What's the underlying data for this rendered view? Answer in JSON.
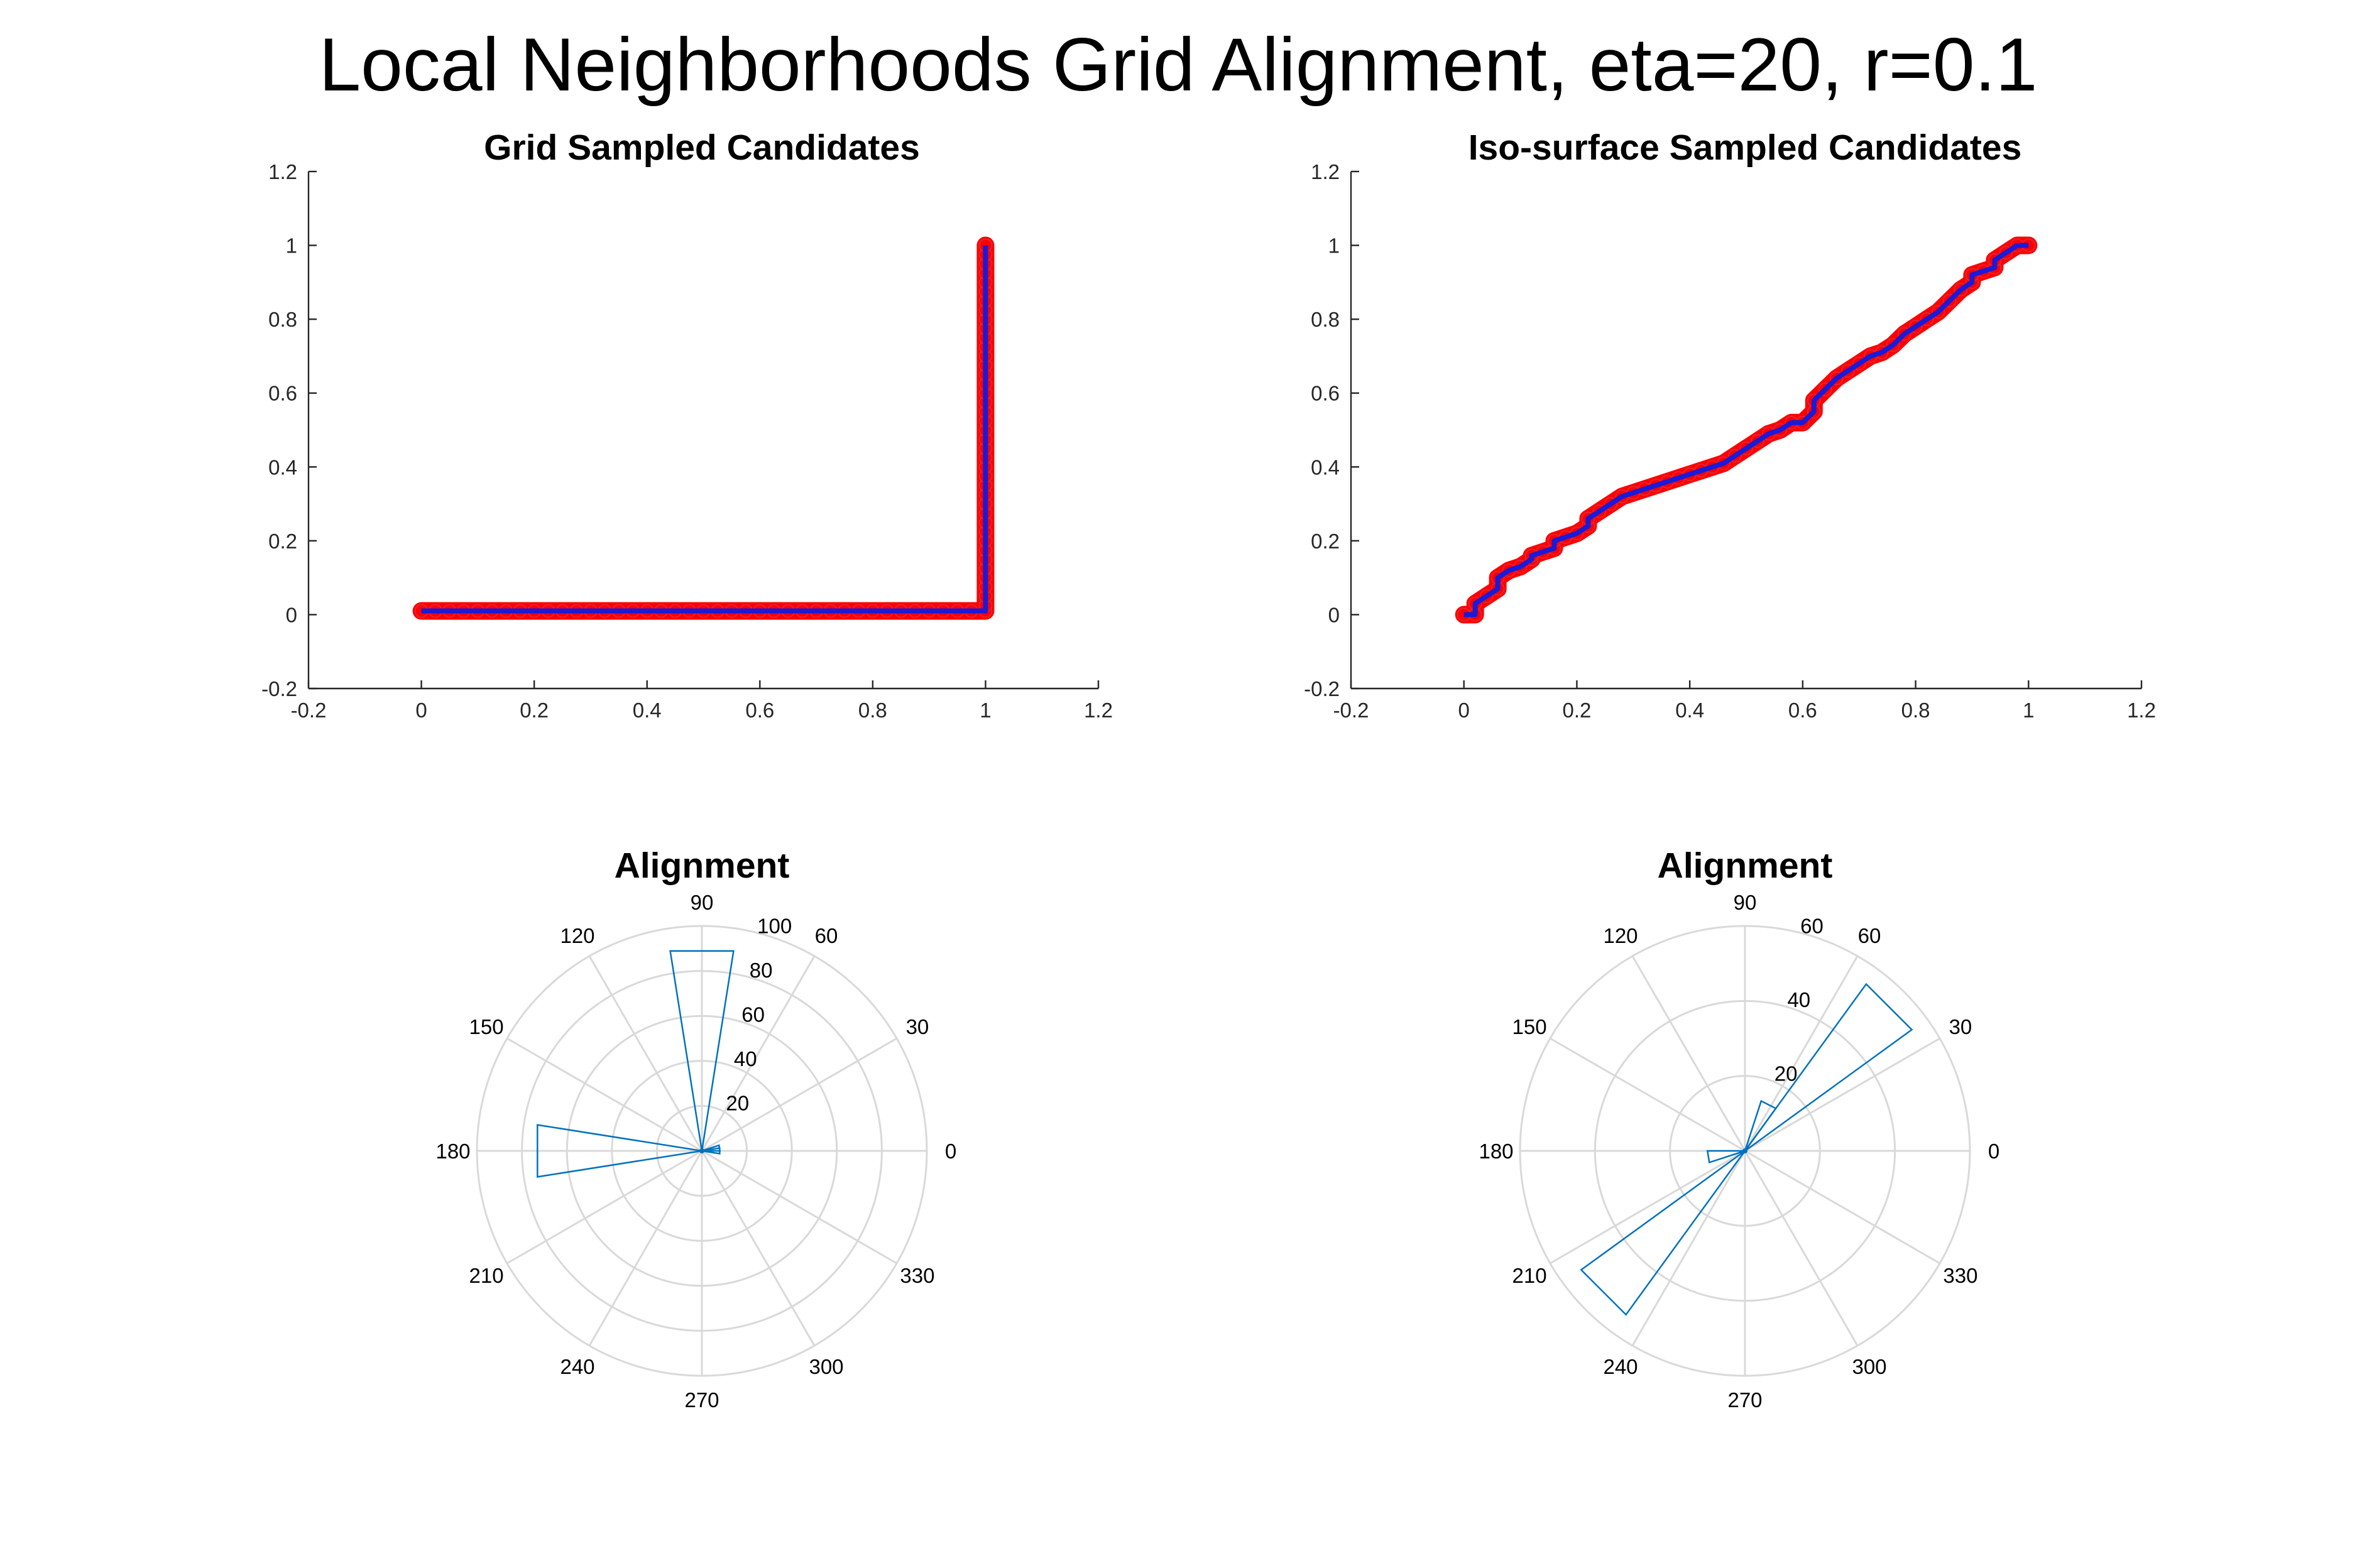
{
  "figure_title": "Local Neighborhoods Grid Alignment, eta=20, r=0.1",
  "colors": {
    "marker_fill": "#ff0000",
    "marker_edge": "#e4242d",
    "line": "#1a1ad9",
    "histogram": "#0072bd",
    "polar_grid": "#d9d9d9",
    "axis": "#262626"
  },
  "chart_data": [
    {
      "type": "line",
      "title": "Grid Sampled Candidates",
      "xlabel": "",
      "ylabel": "",
      "xlim": [
        -0.2,
        1.2
      ],
      "ylim": [
        -0.2,
        1.2
      ],
      "xticks": [
        "-0.2",
        "0",
        "0.2",
        "0.4",
        "0.6",
        "0.8",
        "1",
        "1.2"
      ],
      "yticks": [
        "-0.2",
        "0",
        "0.2",
        "0.4",
        "0.6",
        "0.8",
        "1",
        "1.2"
      ],
      "marker": "circle-red",
      "series": [
        {
          "x": [
            0,
            0.025,
            0.05,
            0.075,
            0.1,
            0.125,
            0.15,
            0.175,
            0.2,
            0.225,
            0.25,
            0.275,
            0.3,
            0.325,
            0.35,
            0.375,
            0.4,
            0.425,
            0.45,
            0.475,
            0.5,
            0.525,
            0.55,
            0.575,
            0.6,
            0.625,
            0.65,
            0.675,
            0.7,
            0.725,
            0.75,
            0.775,
            0.8,
            0.825,
            0.85,
            0.875,
            0.9,
            0.925,
            0.95,
            0.975,
            1,
            1,
            1,
            1,
            1,
            1,
            1,
            1,
            1,
            1,
            1,
            1,
            1,
            1,
            1,
            1,
            1,
            1,
            1,
            1,
            1,
            1,
            1,
            1,
            1,
            1,
            1,
            1,
            1,
            1,
            1,
            1,
            1,
            1,
            1,
            1,
            1,
            1,
            1,
            1,
            1
          ],
          "y": [
            0.01,
            0.01,
            0.01,
            0.01,
            0.01,
            0.01,
            0.01,
            0.01,
            0.01,
            0.01,
            0.01,
            0.01,
            0.01,
            0.01,
            0.01,
            0.01,
            0.01,
            0.01,
            0.01,
            0.01,
            0.01,
            0.01,
            0.01,
            0.01,
            0.01,
            0.01,
            0.01,
            0.01,
            0.01,
            0.01,
            0.01,
            0.01,
            0.01,
            0.01,
            0.01,
            0.01,
            0.01,
            0.01,
            0.01,
            0.01,
            0.01,
            0.025,
            0.05,
            0.075,
            0.1,
            0.125,
            0.15,
            0.175,
            0.2,
            0.225,
            0.25,
            0.275,
            0.3,
            0.325,
            0.35,
            0.375,
            0.4,
            0.425,
            0.45,
            0.475,
            0.5,
            0.525,
            0.55,
            0.575,
            0.6,
            0.625,
            0.65,
            0.675,
            0.7,
            0.725,
            0.75,
            0.775,
            0.8,
            0.825,
            0.85,
            0.875,
            0.9,
            0.925,
            0.95,
            0.975,
            1
          ]
        }
      ]
    },
    {
      "type": "line",
      "title": "Iso-surface Sampled Candidates",
      "xlabel": "",
      "ylabel": "",
      "xlim": [
        -0.2,
        1.2
      ],
      "ylim": [
        -0.2,
        1.2
      ],
      "xticks": [
        "-0.2",
        "0",
        "0.2",
        "0.4",
        "0.6",
        "0.8",
        "1",
        "1.2"
      ],
      "yticks": [
        "-0.2",
        "0",
        "0.2",
        "0.4",
        "0.6",
        "0.8",
        "1",
        "1.2"
      ],
      "marker": "circle-red",
      "series": [
        {
          "x": [
            0,
            0.02,
            0.02,
            0.04,
            0.06,
            0.06,
            0.08,
            0.1,
            0.12,
            0.12,
            0.14,
            0.16,
            0.16,
            0.18,
            0.2,
            0.22,
            0.22,
            0.24,
            0.26,
            0.28,
            0.3,
            0.32,
            0.34,
            0.36,
            0.38,
            0.4,
            0.42,
            0.44,
            0.46,
            0.48,
            0.5,
            0.52,
            0.54,
            0.56,
            0.58,
            0.6,
            0.62,
            0.62,
            0.64,
            0.66,
            0.68,
            0.7,
            0.72,
            0.74,
            0.76,
            0.78,
            0.8,
            0.82,
            0.84,
            0.86,
            0.88,
            0.9,
            0.9,
            0.92,
            0.94,
            0.94,
            0.96,
            0.98,
            1
          ],
          "y": [
            0,
            0,
            0.03,
            0.05,
            0.07,
            0.1,
            0.12,
            0.13,
            0.15,
            0.16,
            0.17,
            0.18,
            0.2,
            0.21,
            0.22,
            0.24,
            0.26,
            0.28,
            0.3,
            0.32,
            0.33,
            0.34,
            0.35,
            0.36,
            0.37,
            0.38,
            0.39,
            0.4,
            0.41,
            0.43,
            0.45,
            0.47,
            0.49,
            0.5,
            0.52,
            0.52,
            0.55,
            0.58,
            0.61,
            0.64,
            0.66,
            0.68,
            0.7,
            0.71,
            0.73,
            0.76,
            0.78,
            0.8,
            0.82,
            0.85,
            0.88,
            0.9,
            0.92,
            0.93,
            0.94,
            0.96,
            0.98,
            1,
            1
          ]
        }
      ]
    },
    {
      "type": "polar-histogram",
      "title": "Alignment",
      "theta_labels": [
        "0",
        "30",
        "60",
        "90",
        "120",
        "150",
        "180",
        "210",
        "240",
        "270",
        "300",
        "330"
      ],
      "rlim": [
        0,
        100
      ],
      "r_ticks": [
        "20",
        "40",
        "60",
        "80",
        "100"
      ],
      "bin_width_deg": 18,
      "bins": [
        {
          "start_deg": 0,
          "count": 8
        },
        {
          "start_deg": 81,
          "count": 90
        },
        {
          "start_deg": 171,
          "count": 74
        },
        {
          "start_deg": 351,
          "count": 8
        }
      ]
    },
    {
      "type": "polar-histogram",
      "title": "Alignment",
      "theta_labels": [
        "0",
        "30",
        "60",
        "90",
        "120",
        "150",
        "180",
        "210",
        "240",
        "270",
        "300",
        "330"
      ],
      "rlim": [
        0,
        60
      ],
      "r_ticks": [
        "20",
        "40",
        "60"
      ],
      "bin_width_deg": 18,
      "bins": [
        {
          "start_deg": 36,
          "count": 55
        },
        {
          "start_deg": 54,
          "count": 14
        },
        {
          "start_deg": 180,
          "count": 10
        },
        {
          "start_deg": 216,
          "count": 54
        }
      ]
    }
  ]
}
